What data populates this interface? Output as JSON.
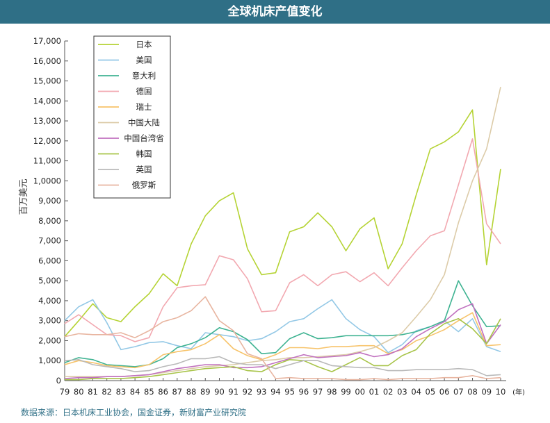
{
  "header": {
    "title": "全球机床产值变化"
  },
  "source": "数据来源：日本机床工业协会，国金证券，新财富产业研究院",
  "chart_data": {
    "type": "line",
    "title": "全球机床产值变化",
    "ylabel": "百万美元",
    "xlabel": "(年)",
    "ylim": [
      0,
      17000
    ],
    "yticks": [
      0,
      1000,
      2000,
      3000,
      4000,
      5000,
      6000,
      7000,
      8000,
      9000,
      10000,
      11000,
      12000,
      13000,
      14000,
      15000,
      16000,
      17000
    ],
    "ytick_labels": [
      "0",
      "1,000",
      "2,000",
      "3,000",
      "4,000",
      "5,000",
      "6,000",
      "7,000",
      "8,000",
      "9,000",
      "1,0000",
      "11,000",
      "12,000",
      "13,000",
      "14,000",
      "15,000",
      "16,000",
      "17,000"
    ],
    "x": [
      "79",
      "80",
      "81",
      "82",
      "83",
      "84",
      "85",
      "86",
      "87",
      "88",
      "89",
      "90",
      "91",
      "92",
      "93",
      "94",
      "95",
      "96",
      "97",
      "98",
      "99",
      "00",
      "01",
      "02",
      "03",
      "04",
      "05",
      "06",
      "07",
      "08",
      "09",
      "10"
    ],
    "legend_position": "top-left",
    "grid": false,
    "series": [
      {
        "name": "日本",
        "color": "#b5d334",
        "values": [
          2200,
          3000,
          3850,
          3150,
          2950,
          3700,
          4350,
          5350,
          4750,
          6850,
          8250,
          9000,
          9400,
          6600,
          5300,
          5400,
          7450,
          7700,
          8400,
          7700,
          6500,
          7600,
          8150,
          5600,
          6850,
          9300,
          11600,
          11950,
          12450,
          13550,
          5800,
          10600
        ]
      },
      {
        "name": "美国",
        "color": "#93c8e6",
        "values": [
          3000,
          3700,
          4050,
          2900,
          1550,
          1700,
          1900,
          1950,
          1750,
          1600,
          2400,
          2300,
          2200,
          2000,
          2100,
          2450,
          2950,
          3100,
          3600,
          4050,
          3100,
          2550,
          2200,
          1400,
          1800,
          2500,
          2700,
          3000,
          2450,
          3100,
          1700,
          1450
        ]
      },
      {
        "name": "意大利",
        "color": "#3fb392",
        "values": [
          900,
          1150,
          1050,
          800,
          750,
          700,
          800,
          1100,
          1650,
          1850,
          2150,
          2650,
          2450,
          2050,
          1350,
          1400,
          2100,
          2400,
          2100,
          2150,
          2250,
          2250,
          2250,
          2250,
          2300,
          2450,
          2700,
          3000,
          5000,
          3750,
          2700,
          2750
        ]
      },
      {
        "name": "德国",
        "color": "#f2a8b0",
        "values": [
          2850,
          3300,
          2800,
          2300,
          2250,
          1950,
          2150,
          3700,
          4650,
          4750,
          4800,
          6250,
          6050,
          5100,
          3450,
          3500,
          4900,
          5300,
          4750,
          5300,
          5450,
          4950,
          5400,
          4750,
          5650,
          6500,
          7250,
          7500,
          9800,
          12100,
          7850,
          6850
        ]
      },
      {
        "name": "瑞士",
        "color": "#f7c36a",
        "values": [
          800,
          1000,
          900,
          750,
          700,
          650,
          800,
          1300,
          1450,
          1550,
          1850,
          2300,
          1600,
          1250,
          1050,
          1300,
          1650,
          1650,
          1600,
          1700,
          1700,
          1750,
          1750,
          1350,
          1550,
          2000,
          2250,
          2550,
          3000,
          3400,
          1750,
          1800
        ]
      },
      {
        "name": "中国大陆",
        "color": "#dccba8",
        "values": [
          200,
          200,
          200,
          200,
          200,
          250,
          300,
          400,
          500,
          600,
          700,
          750,
          800,
          900,
          1000,
          1050,
          1150,
          1150,
          1200,
          1250,
          1300,
          1450,
          1650,
          2000,
          2400,
          3200,
          4050,
          5300,
          7900,
          10000,
          11600,
          14700
        ]
      },
      {
        "name": "中国台湾省",
        "color": "#c070bf",
        "values": [
          100,
          150,
          150,
          200,
          200,
          250,
          300,
          450,
          600,
          700,
          800,
          800,
          650,
          650,
          700,
          900,
          1100,
          1300,
          1150,
          1200,
          1250,
          1400,
          1200,
          1300,
          1600,
          2200,
          2600,
          2950,
          3550,
          3850,
          1850,
          2800
        ]
      },
      {
        "name": "韩国",
        "color": "#a8c449",
        "values": [
          50,
          50,
          100,
          100,
          100,
          150,
          200,
          300,
          400,
          500,
          600,
          650,
          700,
          500,
          450,
          800,
          1050,
          1000,
          700,
          450,
          800,
          1150,
          750,
          750,
          1250,
          1550,
          2350,
          2850,
          3100,
          2600,
          1850,
          3100
        ]
      },
      {
        "name": "英国",
        "color": "#b9b9b9",
        "values": [
          1000,
          1050,
          800,
          700,
          600,
          450,
          500,
          700,
          850,
          1100,
          1100,
          1200,
          900,
          800,
          800,
          600,
          800,
          1000,
          1000,
          750,
          700,
          650,
          650,
          500,
          500,
          550,
          550,
          550,
          600,
          550,
          250,
          300
        ]
      },
      {
        "name": "俄罗斯",
        "color": "#e8b5a0",
        "values": [
          2200,
          2350,
          2300,
          2300,
          2400,
          2150,
          2500,
          2950,
          3150,
          3500,
          4200,
          3000,
          2500,
          1350,
          1100,
          100,
          150,
          100,
          100,
          100,
          50,
          50,
          100,
          50,
          100,
          100,
          100,
          150,
          150,
          250,
          100,
          150
        ]
      }
    ]
  }
}
